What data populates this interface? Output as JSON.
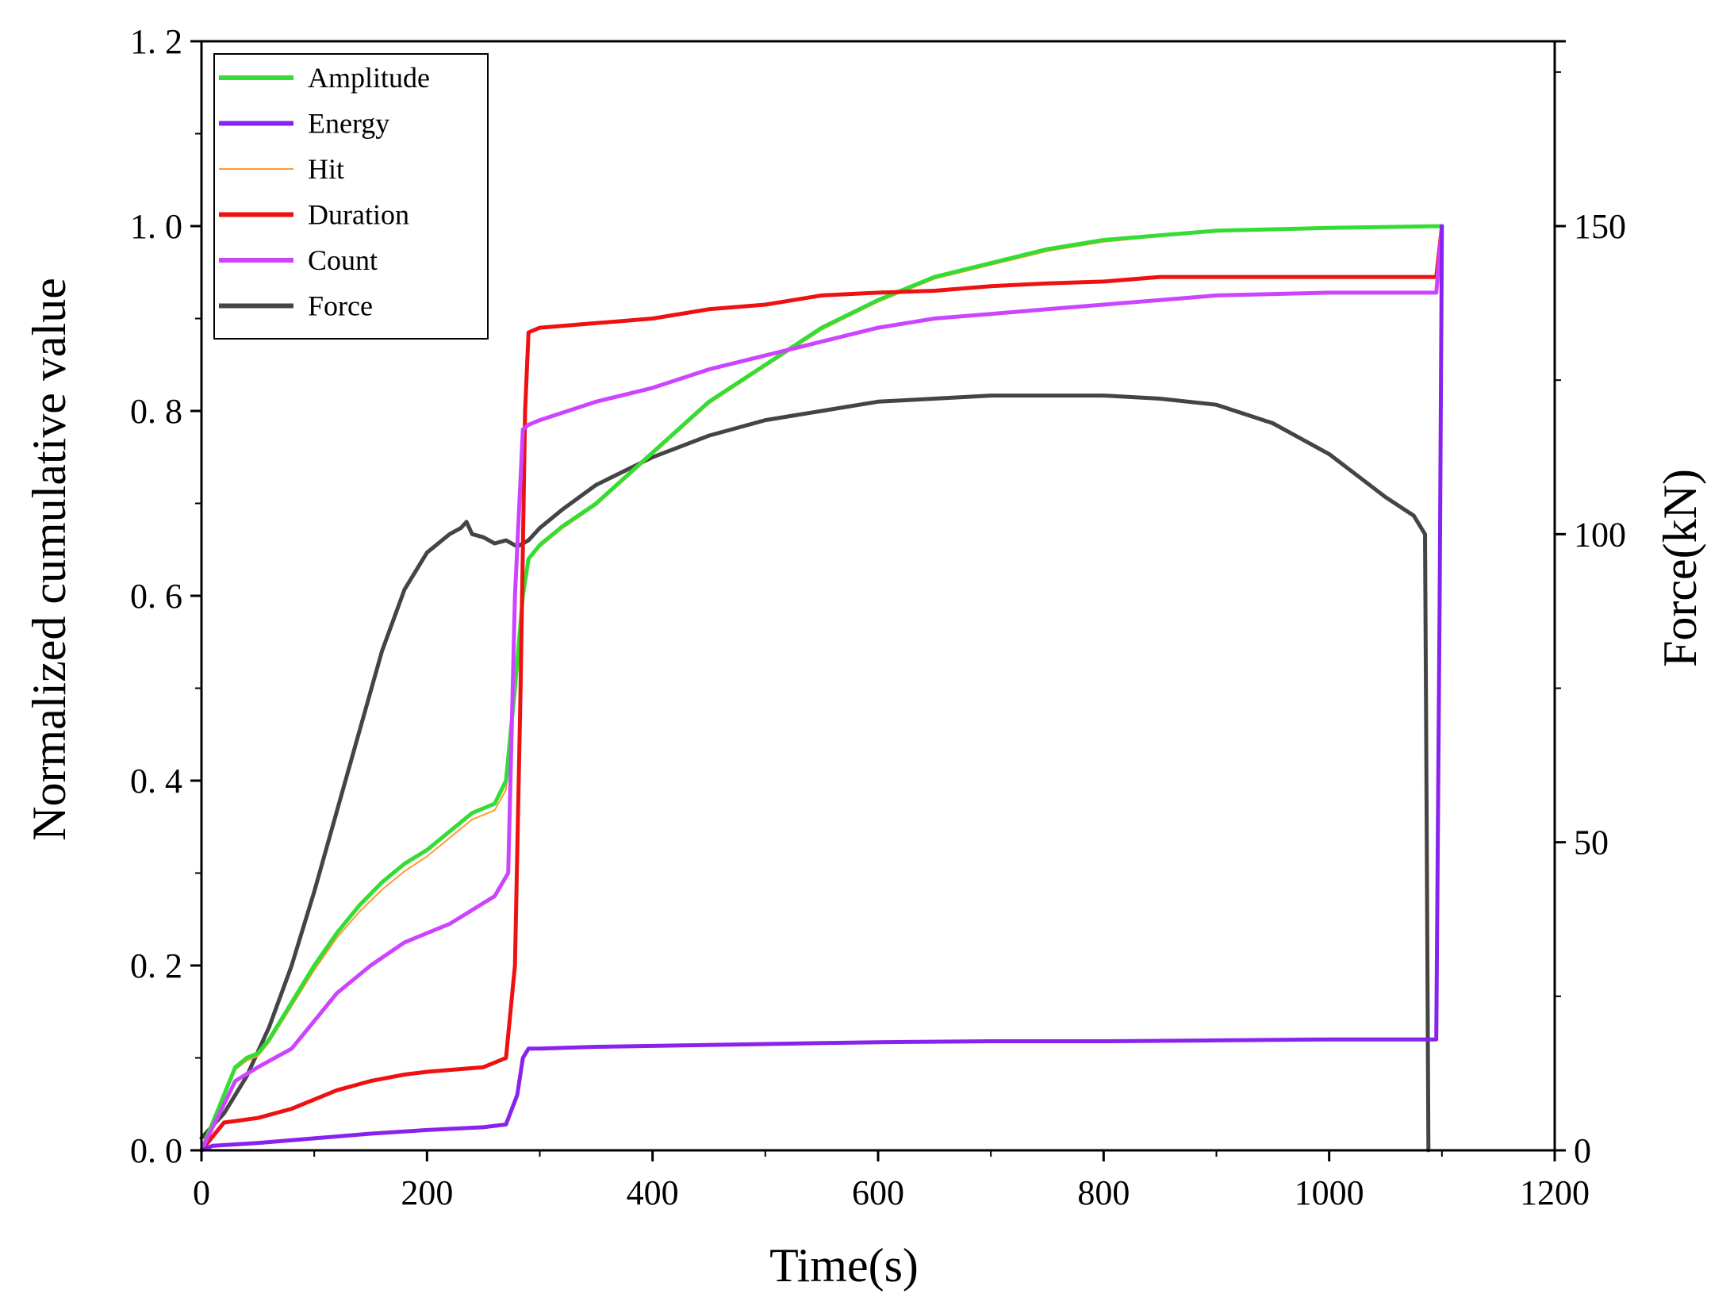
{
  "chart_data": {
    "type": "line",
    "xlabel": "Time(s)",
    "ylabel": "Normalized cumulative value",
    "y2label": "Force(kN)",
    "xlim": [
      0,
      1200
    ],
    "ylim": [
      0,
      1.2
    ],
    "y2lim": [
      0,
      180
    ],
    "xticks": [
      0,
      200,
      400,
      600,
      800,
      1000,
      1200
    ],
    "xtick_labels": [
      "0",
      "200",
      "400",
      "600",
      "800",
      "1000",
      "1200"
    ],
    "yticks": [
      0,
      0.2,
      0.4,
      0.6,
      0.8,
      1.0,
      1.2
    ],
    "ytick_labels": [
      "0. 0",
      "0. 2",
      "0. 4",
      "0. 6",
      "0. 8",
      "1. 0",
      "1. 2"
    ],
    "y2ticks": [
      0,
      50,
      100,
      150
    ],
    "y2tick_labels": [
      "0",
      "50",
      "100",
      "150"
    ],
    "legend_position": "top-left",
    "series": [
      {
        "name": "Amplitude",
        "color": "#33dd33",
        "axis": "left",
        "x": [
          0,
          10,
          20,
          30,
          40,
          50,
          60,
          80,
          100,
          120,
          140,
          160,
          180,
          200,
          220,
          240,
          260,
          270,
          278,
          285,
          290,
          300,
          320,
          350,
          400,
          450,
          500,
          550,
          600,
          650,
          700,
          750,
          800,
          850,
          900,
          1000,
          1100
        ],
        "values": [
          0,
          0.03,
          0.06,
          0.09,
          0.1,
          0.105,
          0.12,
          0.16,
          0.2,
          0.235,
          0.265,
          0.29,
          0.31,
          0.325,
          0.345,
          0.365,
          0.375,
          0.4,
          0.5,
          0.6,
          0.64,
          0.655,
          0.675,
          0.7,
          0.755,
          0.81,
          0.85,
          0.89,
          0.92,
          0.945,
          0.96,
          0.975,
          0.985,
          0.99,
          0.995,
          0.998,
          1.0
        ]
      },
      {
        "name": "Energy",
        "color": "#8822ee",
        "axis": "left",
        "x": [
          0,
          10,
          50,
          100,
          150,
          200,
          250,
          270,
          280,
          285,
          290,
          300,
          350,
          400,
          500,
          600,
          700,
          800,
          900,
          1000,
          1095,
          1098,
          1100
        ],
        "values": [
          0,
          0.005,
          0.008,
          0.013,
          0.018,
          0.022,
          0.025,
          0.028,
          0.06,
          0.1,
          0.11,
          0.11,
          0.112,
          0.113,
          0.115,
          0.117,
          0.118,
          0.118,
          0.119,
          0.12,
          0.12,
          0.6,
          1.0
        ]
      },
      {
        "name": "Hit",
        "color": "#ff9933",
        "axis": "left",
        "x": [
          0,
          10,
          20,
          30,
          40,
          50,
          60,
          80,
          100,
          120,
          140,
          160,
          180,
          200,
          220,
          240,
          260,
          270,
          278,
          285,
          290,
          300,
          320,
          350,
          400,
          450,
          500,
          550,
          600,
          650,
          700,
          750,
          800,
          850,
          900,
          1000,
          1100
        ],
        "values": [
          0,
          0.028,
          0.058,
          0.087,
          0.097,
          0.102,
          0.117,
          0.156,
          0.195,
          0.23,
          0.258,
          0.282,
          0.302,
          0.318,
          0.338,
          0.358,
          0.368,
          0.39,
          0.49,
          0.595,
          0.638,
          0.653,
          0.673,
          0.698,
          0.753,
          0.808,
          0.848,
          0.888,
          0.918,
          0.943,
          0.958,
          0.973,
          0.983,
          0.989,
          0.994,
          0.997,
          1.0
        ]
      },
      {
        "name": "Duration",
        "color": "#ee1111",
        "axis": "left",
        "x": [
          0,
          10,
          20,
          50,
          80,
          100,
          120,
          150,
          180,
          200,
          250,
          270,
          278,
          283,
          287,
          290,
          300,
          350,
          400,
          450,
          500,
          550,
          600,
          650,
          700,
          750,
          800,
          850,
          900,
          1000,
          1095,
          1100
        ],
        "values": [
          0,
          0.015,
          0.03,
          0.035,
          0.045,
          0.055,
          0.065,
          0.075,
          0.082,
          0.085,
          0.09,
          0.1,
          0.2,
          0.5,
          0.8,
          0.885,
          0.89,
          0.895,
          0.9,
          0.91,
          0.915,
          0.925,
          0.928,
          0.93,
          0.935,
          0.938,
          0.94,
          0.945,
          0.945,
          0.945,
          0.945,
          1.0
        ]
      },
      {
        "name": "Count",
        "color": "#cc44ff",
        "axis": "left",
        "x": [
          0,
          10,
          20,
          30,
          50,
          80,
          100,
          120,
          150,
          180,
          200,
          220,
          240,
          260,
          272,
          278,
          285,
          290,
          300,
          350,
          400,
          450,
          500,
          550,
          600,
          650,
          700,
          750,
          800,
          850,
          900,
          1000,
          1095,
          1100
        ],
        "values": [
          0,
          0.025,
          0.05,
          0.075,
          0.09,
          0.11,
          0.14,
          0.17,
          0.2,
          0.225,
          0.235,
          0.245,
          0.26,
          0.275,
          0.3,
          0.6,
          0.78,
          0.785,
          0.79,
          0.81,
          0.825,
          0.845,
          0.86,
          0.875,
          0.89,
          0.9,
          0.905,
          0.91,
          0.915,
          0.92,
          0.925,
          0.928,
          0.928,
          1.0
        ]
      },
      {
        "name": "Force",
        "color": "#444444",
        "axis": "right",
        "x": [
          0,
          10,
          20,
          40,
          60,
          80,
          100,
          120,
          140,
          160,
          180,
          200,
          220,
          230,
          235,
          240,
          250,
          260,
          270,
          280,
          290,
          300,
          320,
          350,
          400,
          450,
          500,
          550,
          600,
          650,
          700,
          750,
          800,
          850,
          900,
          950,
          1000,
          1050,
          1075,
          1085,
          1086,
          1088
        ],
        "values": [
          2,
          4,
          6,
          12,
          20,
          30,
          42,
          55,
          68,
          81,
          91,
          97,
          100,
          101,
          102,
          100,
          99.5,
          98.5,
          99,
          98,
          99,
          101,
          104,
          108,
          112.5,
          116,
          118.5,
          120,
          121.5,
          122,
          122.5,
          122.5,
          122.5,
          122,
          121,
          118,
          113,
          106,
          103,
          100,
          70,
          0
        ]
      }
    ]
  }
}
